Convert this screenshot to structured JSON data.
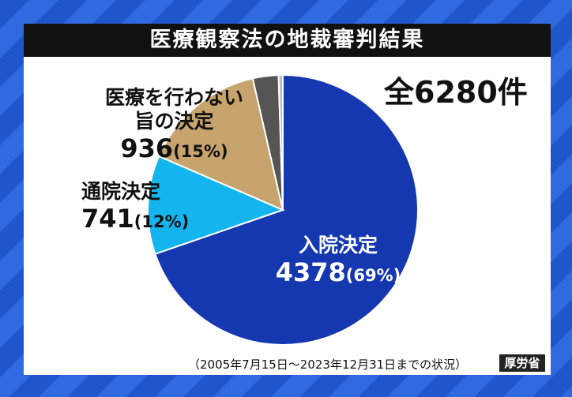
{
  "chart_data": {
    "type": "pie",
    "title": "医療観察法の地裁審判結果",
    "total_label": "全6280件",
    "categories": [
      "入院決定",
      "通院決定",
      "医療を行わない旨の決定",
      null,
      null
    ],
    "values": [
      4378,
      741,
      936,
      193,
      32
    ],
    "percent_labels": [
      "(69%)",
      "(12%)",
      "(15%)",
      null,
      null
    ],
    "colors": [
      "#1537b0",
      "#14b4ef",
      "#c7a46e",
      "#555555",
      "#bdbdbd"
    ],
    "note": "（2005年7月15日～2023年12月31日までの状況）",
    "source": "厚労省"
  }
}
